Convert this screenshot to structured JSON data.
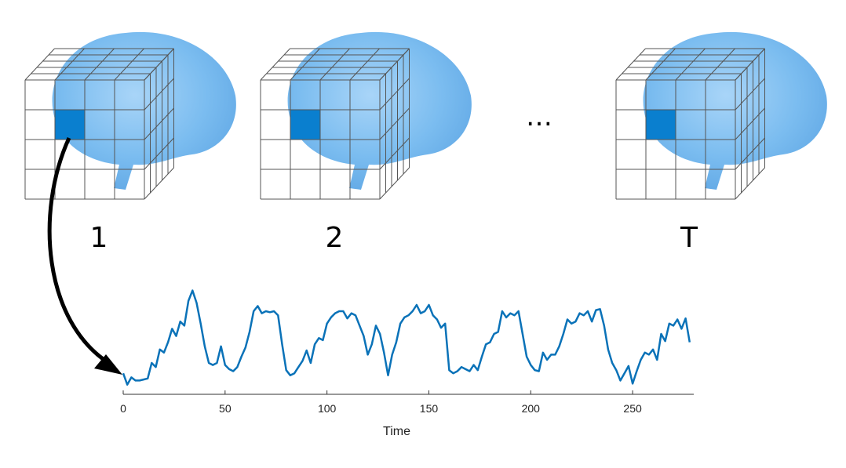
{
  "volumes": [
    {
      "label": "1"
    },
    {
      "label": "2"
    },
    {
      "label": "T"
    }
  ],
  "ellipsis": "…",
  "colors": {
    "brain": "#6cb5ee",
    "brain_dark": "#3f8fd4",
    "voxel_highlight": "#0a7fcf",
    "grid_line": "#555555",
    "series_line": "#0a72b8",
    "arrow": "#000000"
  },
  "chart_data": {
    "type": "line",
    "xlabel": "Time",
    "ylabel": "",
    "xlim": [
      0,
      280
    ],
    "ylim": [
      0,
      1
    ],
    "xticks": [
      0,
      50,
      100,
      150,
      200,
      250
    ],
    "grid": false,
    "series": [
      {
        "x": [
          0,
          2,
          4,
          6,
          8,
          10,
          12,
          14,
          16,
          18,
          20,
          22,
          24,
          26,
          28,
          30,
          32,
          34,
          36,
          38,
          40,
          42,
          44,
          46,
          48,
          50,
          52,
          54,
          56,
          58,
          60,
          62,
          64,
          66,
          68,
          70,
          72,
          74,
          76,
          78,
          80,
          82,
          84,
          86,
          88,
          90,
          92,
          94,
          96,
          98,
          100,
          102,
          104,
          106,
          108,
          110,
          112,
          114,
          116,
          118,
          120,
          122,
          124,
          126,
          128,
          130,
          132,
          134,
          136,
          138,
          140,
          142,
          144,
          146,
          148,
          150,
          152,
          154,
          156,
          158,
          160,
          162,
          164,
          166,
          168,
          170,
          172,
          174,
          176,
          178,
          180,
          182,
          184,
          186,
          188,
          190,
          192,
          194,
          196,
          198,
          200,
          202,
          204,
          206,
          208,
          210,
          212,
          214,
          216,
          218,
          220,
          222,
          224,
          226,
          228,
          230,
          232,
          234,
          236,
          238,
          240,
          242,
          244,
          246,
          248,
          250,
          252,
          254,
          256,
          258,
          260,
          262,
          264,
          266,
          268,
          270,
          272,
          274,
          276,
          278
        ],
        "values": [
          0.12,
          0.01,
          0.08,
          0.05,
          0.05,
          0.06,
          0.07,
          0.22,
          0.18,
          0.35,
          0.32,
          0.42,
          0.55,
          0.48,
          0.62,
          0.58,
          0.82,
          0.92,
          0.8,
          0.6,
          0.38,
          0.22,
          0.2,
          0.22,
          0.38,
          0.2,
          0.16,
          0.14,
          0.18,
          0.28,
          0.37,
          0.52,
          0.72,
          0.77,
          0.7,
          0.72,
          0.71,
          0.72,
          0.68,
          0.4,
          0.15,
          0.1,
          0.12,
          0.18,
          0.24,
          0.34,
          0.22,
          0.4,
          0.46,
          0.44,
          0.6,
          0.66,
          0.7,
          0.72,
          0.72,
          0.65,
          0.7,
          0.68,
          0.58,
          0.48,
          0.3,
          0.4,
          0.58,
          0.5,
          0.32,
          0.1,
          0.3,
          0.42,
          0.6,
          0.66,
          0.68,
          0.72,
          0.78,
          0.7,
          0.72,
          0.78,
          0.68,
          0.64,
          0.56,
          0.6,
          0.15,
          0.12,
          0.14,
          0.18,
          0.16,
          0.14,
          0.2,
          0.15,
          0.28,
          0.4,
          0.42,
          0.5,
          0.52,
          0.72,
          0.66,
          0.7,
          0.68,
          0.72,
          0.5,
          0.28,
          0.2,
          0.15,
          0.14,
          0.32,
          0.25,
          0.3,
          0.3,
          0.38,
          0.5,
          0.64,
          0.6,
          0.62,
          0.7,
          0.68,
          0.72,
          0.62,
          0.73,
          0.74,
          0.58,
          0.35,
          0.22,
          0.15,
          0.05,
          0.12,
          0.19,
          0.02,
          0.14,
          0.25,
          0.32,
          0.3,
          0.35,
          0.25,
          0.5,
          0.43,
          0.6,
          0.58,
          0.64,
          0.55,
          0.65,
          0.42
        ]
      }
    ]
  }
}
